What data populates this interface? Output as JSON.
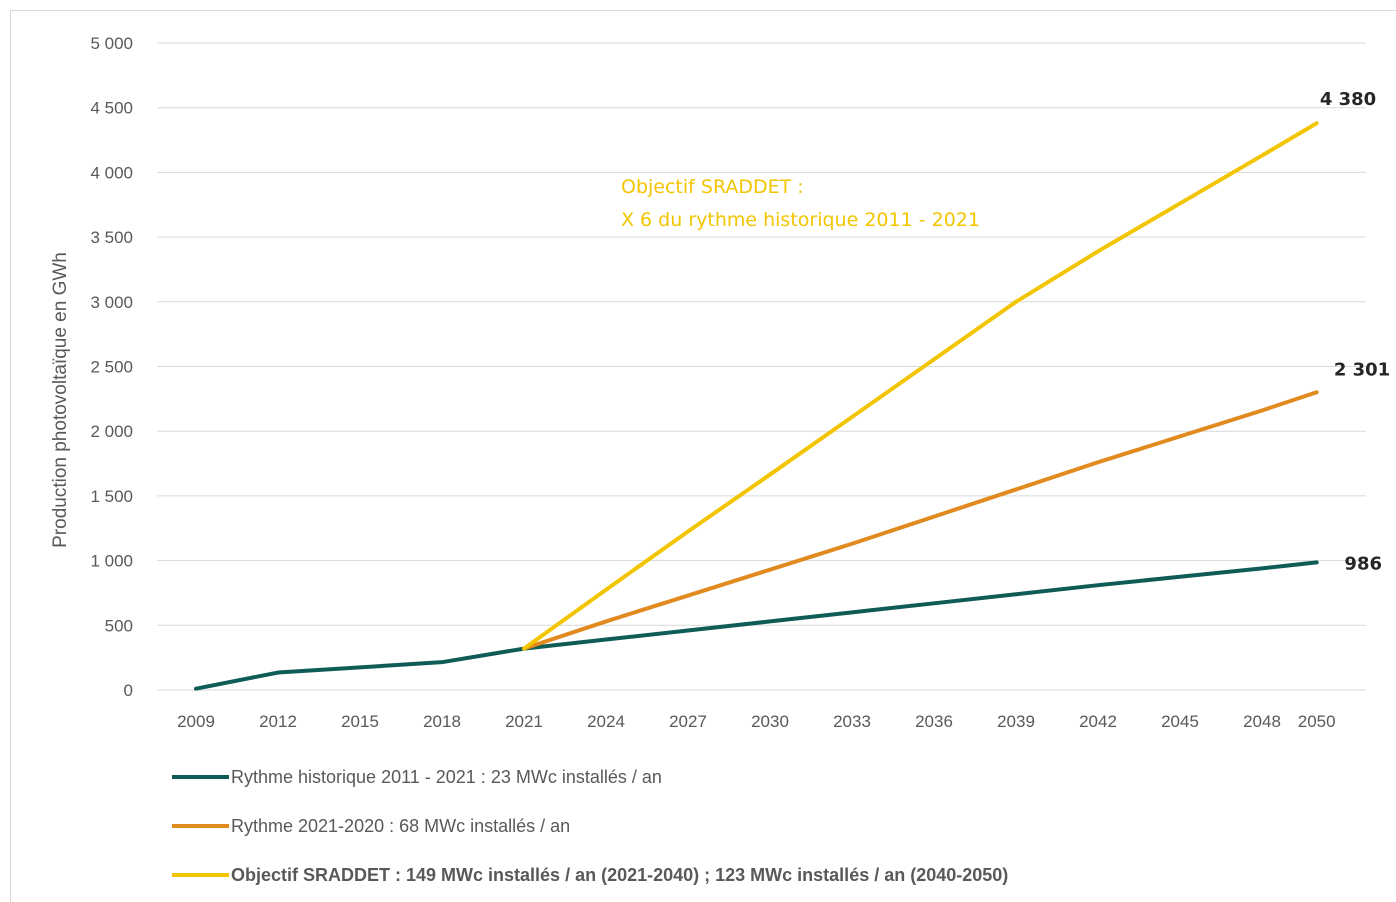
{
  "chart_data": {
    "type": "line",
    "title": "",
    "xlabel": "",
    "ylabel": "Production photovoltaïque  en GWh",
    "categories": [
      "2009",
      "2012",
      "2015",
      "2018",
      "2021",
      "2024",
      "2027",
      "2030",
      "2033",
      "2036",
      "2039",
      "2042",
      "2045",
      "2048",
      "2050"
    ],
    "y_ticks": [
      "0",
      "500",
      "1 000",
      "1 500",
      "2 000",
      "2 500",
      "3 000",
      "3 500",
      "4 000",
      "4 500",
      "5 000"
    ],
    "ylim": [
      0,
      5000
    ],
    "grid": true,
    "legend_position": "bottom",
    "series": [
      {
        "name": "Rythme historique 2011 - 2021 : 23 MWc installés / an",
        "color": "#0f5c57",
        "bold": false,
        "values": [
          10,
          135,
          175,
          215,
          320,
          390,
          460,
          530,
          600,
          670,
          740,
          810,
          875,
          940,
          986
        ],
        "end_label": "986"
      },
      {
        "name": "Rythme 2021-2020 : 68 MWc installés / an",
        "color": "#e18a1f",
        "bold": false,
        "values": [
          null,
          null,
          null,
          null,
          320,
          530,
          730,
          930,
          1130,
          1340,
          1550,
          1760,
          1960,
          2160,
          2301
        ],
        "end_label": "2 301"
      },
      {
        "name": "Objectif SRADDET : 149 MWc installés / an (2021-2040) ; 123 MWc installés / an (2040-2050)",
        "color": "#f2c500",
        "bold": true,
        "values": [
          null,
          null,
          null,
          null,
          320,
          775,
          1225,
          1665,
          2110,
          2555,
          3000,
          3390,
          3760,
          4130,
          4380
        ],
        "end_label": "4 380"
      }
    ],
    "annotation": {
      "line1": "Objectif SRADDET :",
      "line2": "X 6 du rythme historique 2011  - 2021",
      "color": "#f2c500"
    }
  }
}
